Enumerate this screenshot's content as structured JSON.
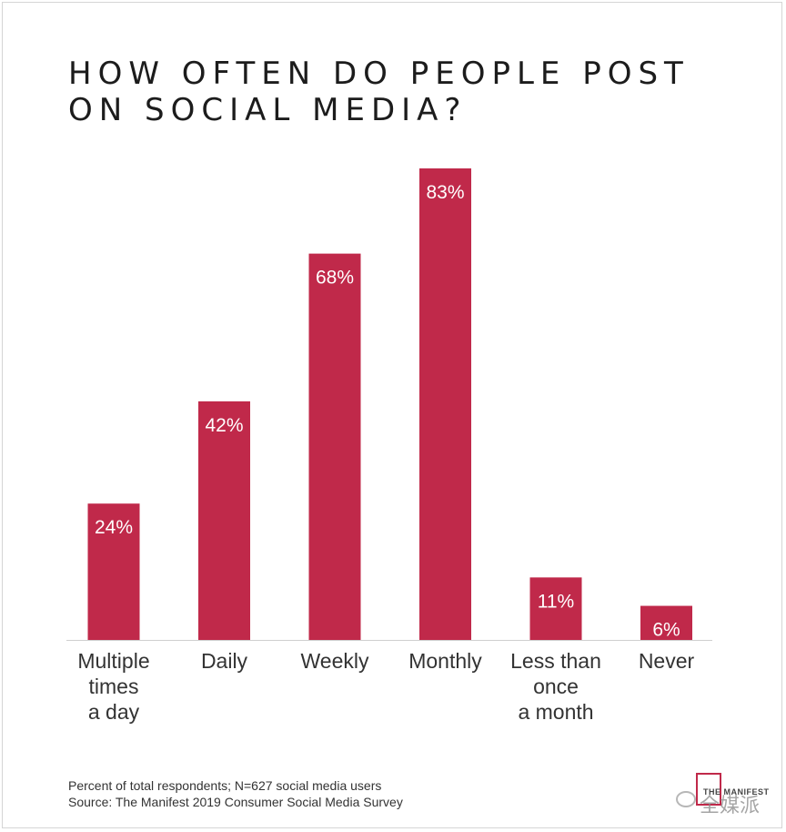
{
  "chart_data": {
    "type": "bar",
    "title": "HOW OFTEN DO PEOPLE POST ON SOCIAL MEDIA?",
    "categories": [
      [
        "Multiple",
        "times",
        "a day"
      ],
      [
        "Daily"
      ],
      [
        "Weekly"
      ],
      [
        "Monthly"
      ],
      [
        "Less than",
        "once",
        "a month"
      ],
      [
        "Never"
      ]
    ],
    "values": [
      24,
      42,
      68,
      83,
      11,
      6
    ],
    "value_labels": [
      "24%",
      "42%",
      "68%",
      "83%",
      "11%",
      "6%"
    ],
    "unit": "%",
    "ylim": [
      0,
      83
    ],
    "bar_color": "#c0294a",
    "grid": false,
    "legend": "none"
  },
  "footnote": {
    "line1": "Percent of total respondents; N=627 social media users",
    "line2": "Source: The Manifest 2019 Consumer Social Media Survey"
  },
  "branding": {
    "logo_text": "THE MANIFEST",
    "watermark_text": "全媒派",
    "icons": [
      "manifest-logo-icon",
      "wechat-watermark-icon"
    ]
  }
}
